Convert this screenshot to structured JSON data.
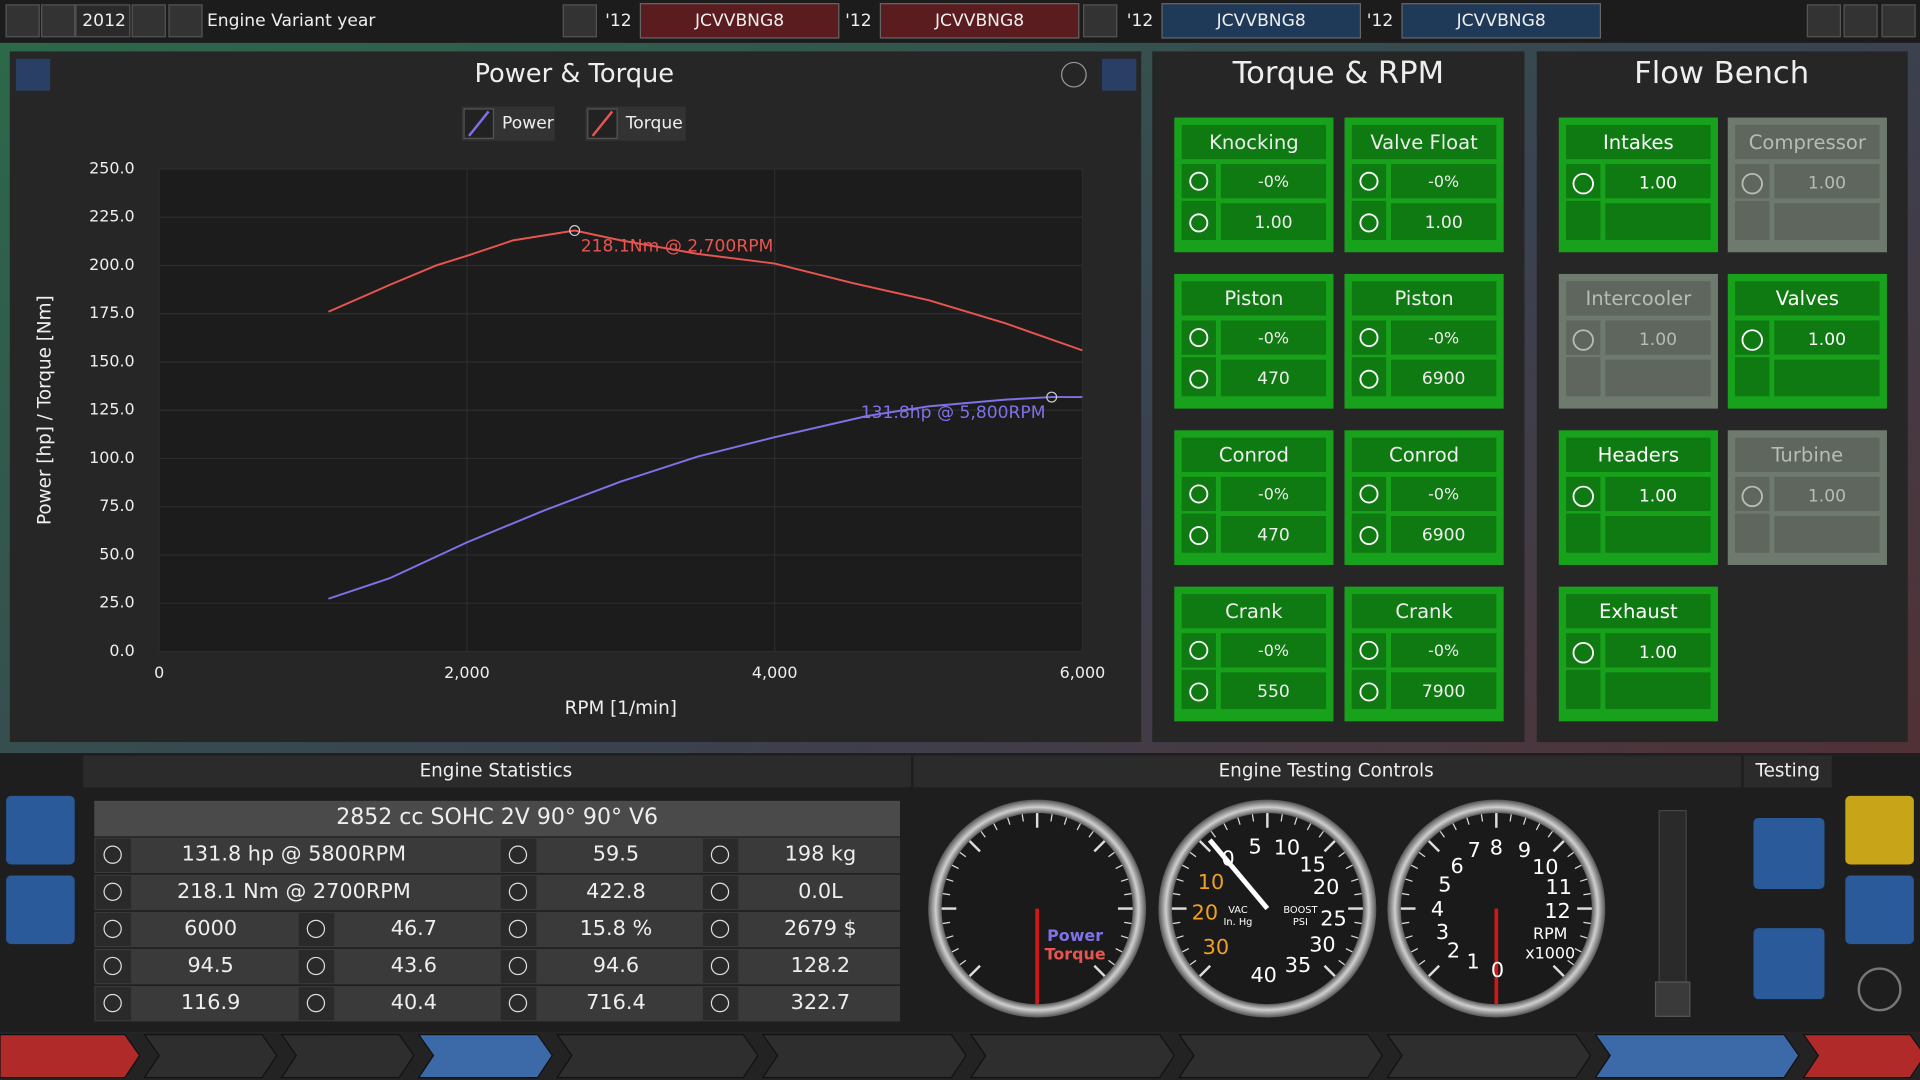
{
  "top_bar": {
    "year": "2012",
    "variant_label": "Engine Variant year",
    "slots": [
      {
        "year": "'12",
        "code": "JCVVBNG8"
      },
      {
        "year": "'12",
        "code": "JCVVBNG8"
      },
      {
        "year": "'12",
        "code": "JCVVBNG8"
      },
      {
        "year": "'12",
        "code": "JCVVBNG8"
      }
    ]
  },
  "chart_data": {
    "type": "line",
    "title": "Power & Torque",
    "x_label": "RPM [1/min]",
    "y_label": "Power [hp] / Torque [Nm]",
    "xlim": [
      0,
      6000
    ],
    "xticks": [
      0,
      {
        "value": 2000,
        "label": "2,000"
      },
      {
        "value": 4000,
        "label": "4,000"
      },
      {
        "value": 6000,
        "label": "6,000"
      }
    ],
    "ylim": [
      0,
      250
    ],
    "yticks": [
      {
        "value": 0,
        "label": "0.0"
      },
      {
        "value": 25,
        "label": "25.0"
      },
      {
        "value": 50,
        "label": "50.0"
      },
      {
        "value": 75,
        "label": "75.0"
      },
      {
        "value": 100,
        "label": "100.0"
      },
      {
        "value": 125,
        "label": "125.0"
      },
      {
        "value": 150,
        "label": "150.0"
      },
      {
        "value": 175,
        "label": "175.0"
      },
      {
        "value": 200,
        "label": "200.0"
      },
      {
        "value": 225,
        "label": "225.0"
      },
      {
        "value": 250,
        "label": "250.0"
      }
    ],
    "grid": true,
    "legend": "top",
    "series": [
      {
        "name": "Power",
        "color": "#7d72e8",
        "x": [
          1100,
          1500,
          2000,
          2500,
          3000,
          3500,
          4000,
          4600,
          5000,
          5500,
          5800,
          6000
        ],
        "values": [
          27.3,
          38,
          56.5,
          73,
          88,
          101,
          111,
          122,
          127,
          130.5,
          131.8,
          131.8
        ]
      },
      {
        "name": "Torque",
        "color": "#e85550",
        "x": [
          1100,
          1500,
          1800,
          2000,
          2300,
          2700,
          3000,
          3500,
          4000,
          4500,
          5000,
          5500,
          6000
        ],
        "values": [
          176,
          190,
          200,
          205,
          213,
          218.1,
          213,
          206,
          201,
          191,
          182,
          170,
          156
        ]
      }
    ],
    "annotations": [
      {
        "text": "218.1Nm @ 2,700RPM",
        "x": 2700,
        "y": 218.1
      },
      {
        "text": "131.8hp @ 5,800RPM",
        "x": 5800,
        "y": 131.8
      }
    ]
  },
  "torque_rpm": {
    "title": "Torque & RPM",
    "cards": [
      {
        "title": "Knocking",
        "change": "-0%",
        "value": "1.00"
      },
      {
        "title": "Valve Float",
        "change": "-0%",
        "value": "1.00"
      },
      {
        "title": "Piston",
        "change": "-0%",
        "value": "470"
      },
      {
        "title": "Piston",
        "change": "-0%",
        "value": "6900"
      },
      {
        "title": "Conrod",
        "change": "-0%",
        "value": "470"
      },
      {
        "title": "Conrod",
        "change": "-0%",
        "value": "6900"
      },
      {
        "title": "Crank",
        "change": "-0%",
        "value": "550"
      },
      {
        "title": "Crank",
        "change": "-0%",
        "value": "7900"
      }
    ]
  },
  "flow_bench": {
    "title": "Flow Bench",
    "cards": [
      {
        "title": "Intakes",
        "value": "1.00",
        "enabled": true
      },
      {
        "title": "Compressor",
        "value": "1.00",
        "enabled": false
      },
      {
        "title": "Intercooler",
        "value": "1.00",
        "enabled": false
      },
      {
        "title": "Valves",
        "value": "1.00",
        "enabled": true
      },
      {
        "title": "Headers",
        "value": "1.00",
        "enabled": true
      },
      {
        "title": "Turbine",
        "value": "1.00",
        "enabled": false
      },
      {
        "title": "Exhaust",
        "value": "1.00",
        "enabled": true
      }
    ]
  },
  "engine_statistics": {
    "title": "Engine Statistics",
    "summary": "2852 cc SOHC 2V 90° 90° V6",
    "rows": [
      [
        "131.8 hp @ 5800RPM",
        "59.5",
        "198 kg"
      ],
      [
        "218.1 Nm @ 2700RPM",
        "422.8",
        "0.0L"
      ],
      [
        "6000",
        "46.7",
        "15.8 %",
        "2679 $"
      ],
      [
        "94.5",
        "43.6",
        "94.6",
        "128.2"
      ],
      [
        "116.9",
        "40.4",
        "716.4",
        "322.7"
      ]
    ]
  },
  "testing_controls": {
    "title": "Engine Testing Controls",
    "gauges": [
      {
        "labels": [
          "Power",
          "Torque"
        ]
      },
      {
        "labels": [
          "0",
          "5",
          "10",
          "15",
          "20",
          "25",
          "30",
          "35",
          "40",
          "10",
          "20",
          "30",
          "VAC",
          "In. Hg",
          "BOOST",
          "PSI"
        ]
      },
      {
        "labels": [
          "1",
          "2",
          "3",
          "4",
          "5",
          "6",
          "7",
          "8",
          "9",
          "10",
          "11",
          "12",
          "0",
          "RPM",
          "x1000"
        ]
      }
    ]
  },
  "testing": {
    "title": "Testing"
  }
}
